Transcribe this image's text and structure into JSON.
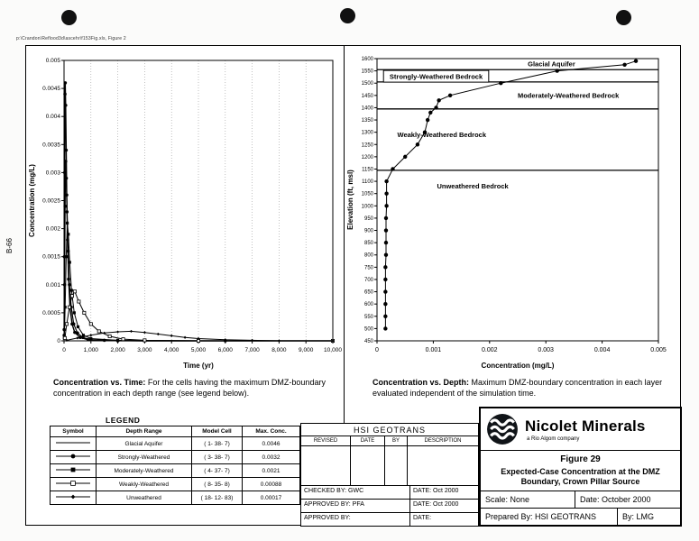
{
  "page": {
    "file_path": "p:\\Crandon\\Reflood3d\\ascehr\\f153Fig.xls, Figure 2",
    "side_label": "B-66"
  },
  "captions": {
    "left_lead": "Concentration vs. Time:",
    "left_text": "For the cells having the maximum DMZ-boundary concentration in each depth range (see legend below).",
    "right_lead": "Concentration vs. Depth:",
    "right_text": "Maximum DMZ-boundary concentration in each layer evaluated independent of the simulation time."
  },
  "legend": {
    "title": "LEGEND",
    "headers": [
      "Symbol",
      "Depth Range",
      "Model Cell",
      "Max. Conc."
    ],
    "rows": [
      {
        "marker": "line",
        "depth_range": "Glacial Aquifer",
        "model_cell": "( 1- 38-  7)",
        "max_conc": "0.0046"
      },
      {
        "marker": "circle",
        "depth_range": "Strongly-Weathered",
        "model_cell": "( 3- 38-  7)",
        "max_conc": "0.0032"
      },
      {
        "marker": "square",
        "depth_range": "Moderately-Weathered",
        "model_cell": "( 4- 37-  7)",
        "max_conc": "0.0021"
      },
      {
        "marker": "square-open",
        "depth_range": "Weakly-Weathered",
        "model_cell": "( 8- 35-  8)",
        "max_conc": "0.00088"
      },
      {
        "marker": "diamond",
        "depth_range": "Unweathered",
        "model_cell": "( 18- 12- 83)",
        "max_conc": "0.00017"
      }
    ]
  },
  "hsi_block": {
    "title": "HSI GEOTRANS",
    "col_headers": [
      "REVISED",
      "DATE",
      "BY",
      "DESCRIPTION"
    ],
    "checked_by": "CHECKED BY:  GWC",
    "checked_date": "DATE:  Oct 2000",
    "approved1": "APPROVED BY:  PFA",
    "approved1_date": "DATE:  Oct 2000",
    "approved2": "APPROVED BY:",
    "approved2_date": "DATE:"
  },
  "nicolet_block": {
    "brand": "Nicolet Minerals",
    "brand_sub": "a Rio Algom company",
    "figure_label": "Figure 29",
    "figure_title_line1": "Expected-Case Concentration at the DMZ",
    "figure_title_line2": "Boundary, Crown Pillar Source",
    "scale": "Scale:   None",
    "date": "Date:  October 2000",
    "prepared_by": "Prepared By:  HSI GEOTRANS",
    "by": "By:  LMG"
  },
  "chart_data": [
    {
      "type": "line",
      "title": "Concentration vs. Time",
      "xlabel": "Time (yr)",
      "ylabel": "Concentration (mg/L)",
      "xlim": [
        0,
        10000
      ],
      "ylim": [
        0,
        0.005
      ],
      "vgrid": true,
      "xticks": [
        {
          "v": 0,
          "l": "0"
        },
        {
          "v": 1000,
          "l": "1,000"
        },
        {
          "v": 2000,
          "l": "2,000"
        },
        {
          "v": 3000,
          "l": "3,000"
        },
        {
          "v": 4000,
          "l": "4,000"
        },
        {
          "v": 5000,
          "l": "5,000"
        },
        {
          "v": 6000,
          "l": "6,000"
        },
        {
          "v": 7000,
          "l": "7,000"
        },
        {
          "v": 8000,
          "l": "8,000"
        },
        {
          "v": 9000,
          "l": "9,000"
        },
        {
          "v": 10000,
          "l": "10,000"
        }
      ],
      "yticks": [
        {
          "v": 0,
          "l": "0"
        },
        {
          "v": 0.0005,
          "l": "0.0005"
        },
        {
          "v": 0.001,
          "l": "0.001"
        },
        {
          "v": 0.0015,
          "l": "0.0015"
        },
        {
          "v": 0.002,
          "l": "0.002"
        },
        {
          "v": 0.0025,
          "l": "0.0025"
        },
        {
          "v": 0.003,
          "l": "0.003"
        },
        {
          "v": 0.0035,
          "l": "0.0035"
        },
        {
          "v": 0.004,
          "l": "0.004"
        },
        {
          "v": 0.0045,
          "l": "0.0045"
        },
        {
          "v": 0.005,
          "l": "0.005"
        }
      ],
      "series": [
        {
          "name": "Glacial Aquifer",
          "marker": "circle",
          "ms": 1.8,
          "lw": 1.4,
          "max_conc": 0.0046,
          "points": [
            [
              5,
              0.0002
            ],
            [
              15,
              0.0015
            ],
            [
              25,
              0.003
            ],
            [
              35,
              0.0044
            ],
            [
              45,
              0.0046
            ],
            [
              60,
              0.0042
            ],
            [
              80,
              0.0034
            ],
            [
              100,
              0.0026
            ],
            [
              130,
              0.0018
            ],
            [
              170,
              0.0011
            ],
            [
              220,
              0.0006
            ],
            [
              300,
              0.0003
            ],
            [
              400,
              0.00015
            ],
            [
              600,
              6e-05
            ],
            [
              900,
              2e-05
            ],
            [
              1500,
              1e-05
            ],
            [
              3000,
              0
            ],
            [
              6000,
              0
            ],
            [
              10000,
              0
            ]
          ]
        },
        {
          "name": "Strongly-Weathered",
          "marker": "circle",
          "ms": 1.8,
          "lw": 1.2,
          "max_conc": 0.0032,
          "points": [
            [
              5,
              0.0001
            ],
            [
              20,
              0.001
            ],
            [
              40,
              0.0024
            ],
            [
              60,
              0.0032
            ],
            [
              85,
              0.0029
            ],
            [
              110,
              0.0023
            ],
            [
              150,
              0.0016
            ],
            [
              200,
              0.001
            ],
            [
              270,
              0.0006
            ],
            [
              360,
              0.0003
            ],
            [
              500,
              0.00014
            ],
            [
              700,
              6e-05
            ],
            [
              1000,
              2e-05
            ],
            [
              2000,
              0
            ],
            [
              5000,
              0
            ],
            [
              10000,
              0
            ]
          ]
        },
        {
          "name": "Moderately-Weathered",
          "marker": "square",
          "ms": 1.6,
          "lw": 1,
          "max_conc": 0.0021,
          "points": [
            [
              10,
              5e-05
            ],
            [
              40,
              0.0006
            ],
            [
              80,
              0.0015
            ],
            [
              120,
              0.0021
            ],
            [
              160,
              0.0019
            ],
            [
              210,
              0.0014
            ],
            [
              280,
              0.0009
            ],
            [
              380,
              0.0005
            ],
            [
              520,
              0.00025
            ],
            [
              720,
              0.0001
            ],
            [
              1000,
              4e-05
            ],
            [
              2000,
              1e-05
            ],
            [
              5000,
              0
            ],
            [
              10000,
              0
            ]
          ]
        },
        {
          "name": "Weakly-Weathered",
          "marker": "square-open",
          "ms": 1.6,
          "lw": 1,
          "max_conc": 0.00088,
          "points": [
            [
              30,
              5e-05
            ],
            [
              100,
              0.0003
            ],
            [
              200,
              0.0006
            ],
            [
              300,
              0.0008
            ],
            [
              400,
              0.00088
            ],
            [
              550,
              0.0007
            ],
            [
              750,
              0.0005
            ],
            [
              1000,
              0.0003
            ],
            [
              1300,
              0.00017
            ],
            [
              1700,
              8e-05
            ],
            [
              2200,
              3e-05
            ],
            [
              3000,
              1e-05
            ],
            [
              5000,
              0
            ],
            [
              10000,
              0
            ]
          ]
        },
        {
          "name": "Unweathered",
          "marker": "diamond",
          "ms": 1.6,
          "lw": 1,
          "max_conc": 0.00017,
          "points": [
            [
              100,
              1e-05
            ],
            [
              500,
              5e-05
            ],
            [
              1000,
              0.0001
            ],
            [
              1500,
              0.00014
            ],
            [
              2000,
              0.00016
            ],
            [
              2500,
              0.00017
            ],
            [
              3000,
              0.00015
            ],
            [
              3500,
              0.00012
            ],
            [
              4000,
              9e-05
            ],
            [
              4500,
              6e-05
            ],
            [
              5000,
              4e-05
            ],
            [
              6000,
              2e-05
            ],
            [
              7000,
              1e-05
            ],
            [
              8000,
              0
            ],
            [
              10000,
              0
            ]
          ]
        }
      ]
    },
    {
      "type": "line",
      "title": "Concentration vs. Depth",
      "xlabel": "Concentration (mg/L)",
      "ylabel": "Elevation (ft, msl)",
      "xlim": [
        0,
        0.005
      ],
      "ylim": [
        450,
        1600
      ],
      "vgrid": false,
      "xticks": [
        {
          "v": 0,
          "l": "0"
        },
        {
          "v": 0.001,
          "l": "0.001"
        },
        {
          "v": 0.002,
          "l": "0.002"
        },
        {
          "v": 0.003,
          "l": "0.003"
        },
        {
          "v": 0.004,
          "l": "0.004"
        },
        {
          "v": 0.005,
          "l": "0.005"
        }
      ],
      "yticks": [
        {
          "v": 450,
          "l": "450"
        },
        {
          "v": 500,
          "l": "500"
        },
        {
          "v": 550,
          "l": "550"
        },
        {
          "v": 600,
          "l": "600"
        },
        {
          "v": 650,
          "l": "650"
        },
        {
          "v": 700,
          "l": "700"
        },
        {
          "v": 750,
          "l": "750"
        },
        {
          "v": 800,
          "l": "800"
        },
        {
          "v": 850,
          "l": "850"
        },
        {
          "v": 900,
          "l": "900"
        },
        {
          "v": 950,
          "l": "950"
        },
        {
          "v": 1000,
          "l": "1000"
        },
        {
          "v": 1050,
          "l": "1050"
        },
        {
          "v": 1100,
          "l": "1100"
        },
        {
          "v": 1150,
          "l": "1150"
        },
        {
          "v": 1200,
          "l": "1200"
        },
        {
          "v": 1250,
          "l": "1250"
        },
        {
          "v": 1300,
          "l": "1300"
        },
        {
          "v": 1350,
          "l": "1350"
        },
        {
          "v": 1400,
          "l": "1400"
        },
        {
          "v": 1450,
          "l": "1450"
        },
        {
          "v": 1500,
          "l": "1500"
        },
        {
          "v": 1550,
          "l": "1550"
        },
        {
          "v": 1600,
          "l": "1600"
        }
      ],
      "hlines": [
        1555,
        1505,
        1395,
        1145
      ],
      "labels": [
        {
          "x": 0.0031,
          "y": 1578,
          "text": "Glacial Aquifer",
          "boxed": false
        },
        {
          "x": 0.00105,
          "y": 1528,
          "text": "Strongly-Weathered Bedrock",
          "boxed": true
        },
        {
          "x": 0.0034,
          "y": 1450,
          "text": "Moderately-Weathered Bedrock",
          "boxed": false
        },
        {
          "x": 0.00115,
          "y": 1290,
          "text": "Weakly-Weathered Bedrock",
          "boxed": false
        },
        {
          "x": 0.0017,
          "y": 1080,
          "text": "Unweathered Bedrock",
          "boxed": false
        }
      ],
      "series": [
        {
          "name": "Max DMZ-boundary concentration",
          "marker": "circle",
          "ms": 2.2,
          "lw": 1,
          "points": [
            [
              0.00015,
              500
            ],
            [
              0.00015,
              550
            ],
            [
              0.00015,
              600
            ],
            [
              0.00015,
              650
            ],
            [
              0.00015,
              700
            ],
            [
              0.00015,
              750
            ],
            [
              0.00016,
              800
            ],
            [
              0.00016,
              850
            ],
            [
              0.00016,
              900
            ],
            [
              0.00016,
              950
            ],
            [
              0.00017,
              1000
            ],
            [
              0.00017,
              1050
            ],
            [
              0.00017,
              1100
            ],
            [
              0.00028,
              1150
            ],
            [
              0.0005,
              1200
            ],
            [
              0.00072,
              1250
            ],
            [
              0.00085,
              1300
            ],
            [
              0.0009,
              1350
            ],
            [
              0.00095,
              1380
            ],
            [
              0.00105,
              1400
            ],
            [
              0.0011,
              1430
            ],
            [
              0.0013,
              1450
            ],
            [
              0.0022,
              1500
            ],
            [
              0.0032,
              1550
            ],
            [
              0.0044,
              1575
            ],
            [
              0.0046,
              1590
            ]
          ]
        }
      ]
    }
  ]
}
